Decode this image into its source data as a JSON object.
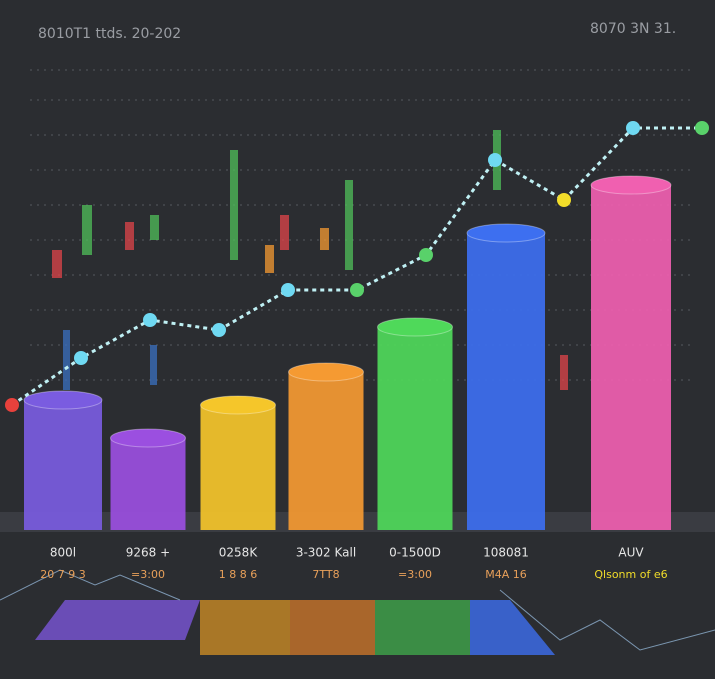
{
  "chart_data": [
    {
      "type": "bar",
      "annotations": [
        "8010T1 ttds. 20-202",
        "8070 3N 31."
      ],
      "categories": [
        "800l",
        "9268 +",
        "0258K",
        "3-302 Kall",
        "0-1500D",
        "108081",
        "AUV"
      ],
      "values": [
        13,
        9.2,
        12.5,
        15.8,
        20.3,
        29.7,
        34.5
      ],
      "colors": [
        "#7a5ce0",
        "#9b4fe0",
        "#f5c62a",
        "#f59a32",
        "#4fd95a",
        "#3d6ff0",
        "#f060b0"
      ],
      "notes": [
        "20 7 9 3",
        "=3:00",
        "1 8 8 6",
        "7TT8",
        "=3:00",
        "M4A 16",
        "Qlsonm of e6"
      ],
      "ylim": [
        0,
        42
      ]
    },
    {
      "type": "line",
      "x": [
        0,
        1,
        2,
        3,
        4,
        5,
        6,
        7,
        8,
        9,
        10
      ],
      "values": [
        12.5,
        17.2,
        21,
        20,
        24,
        24,
        27.5,
        37,
        33,
        40.2,
        40.2
      ],
      "color": "#bff0f4",
      "point_colors": [
        "#e8413c",
        "#6fd9f2",
        "#6fd9f2",
        "#6fd9f2",
        "#6fd9f2",
        "#59d16a",
        "#59d16a",
        "#6fd9f2",
        "#f2dd2a",
        "#6fd9f2",
        "#59d16a"
      ],
      "xlim": [
        0,
        10
      ],
      "ylim": [
        0,
        42
      ]
    }
  ]
}
